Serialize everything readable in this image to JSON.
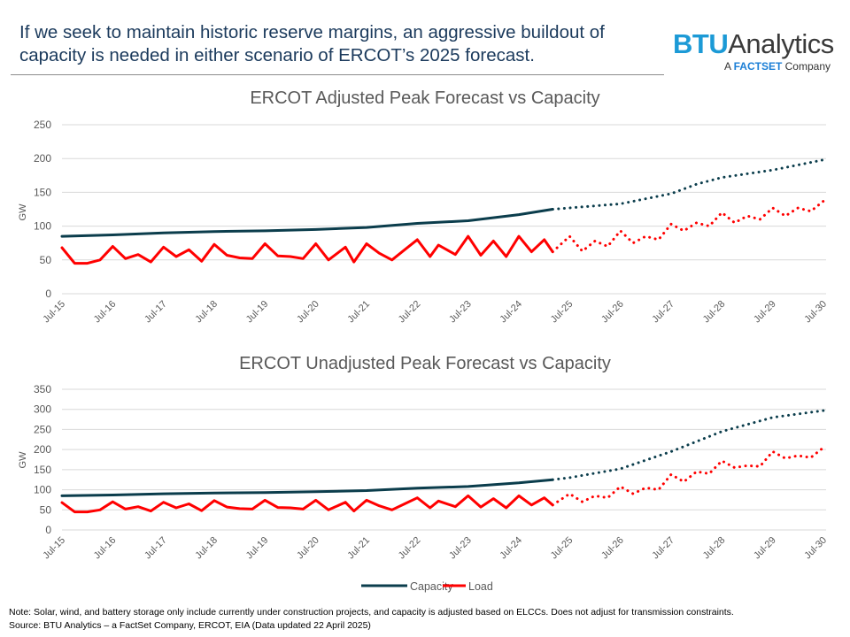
{
  "headline": "If we seek to maintain historic reserve margins, an aggressive buildout of capacity is needed in either scenario of ERCOT’s 2025 forecast.",
  "logo": {
    "brand": "BTU",
    "brand2": "Analytics",
    "tagline_pre": "A ",
    "tagline_brand": "FACTSET",
    "tagline_post": " Company"
  },
  "legend": {
    "capacity": "Capacity",
    "load": "Load"
  },
  "colors": {
    "capacity": "#0b3d4c",
    "load": "#ff0000",
    "grid": "#d9d9d9",
    "axis_text": "#595959"
  },
  "notes": {
    "note": "Note: Solar, wind, and battery storage only include currently under construction projects, and capacity is adjusted based on ELCCs. Does not adjust for transmission constraints.",
    "source": "Source: BTU Analytics – a FactSet Company, ERCOT, EIA (Data updated 22 April 2025)"
  },
  "chart_data": [
    {
      "type": "line",
      "title": "ERCOT Adjusted Peak Forecast vs Capacity",
      "ylabel": "GW",
      "ylim": [
        0,
        250
      ],
      "yticks": [
        0,
        50,
        100,
        150,
        200,
        250
      ],
      "xlim": [
        "2015-07",
        "2030-07"
      ],
      "xtick_labels": [
        "Jul-15",
        "Jul-16",
        "Jul-17",
        "Jul-18",
        "Jul-19",
        "Jul-20",
        "Jul-21",
        "Jul-22",
        "Jul-23",
        "Jul-24",
        "Jul-25",
        "Jul-26",
        "Jul-27",
        "Jul-28",
        "Jul-29",
        "Jul-30"
      ],
      "grid": true,
      "legend": "bottom",
      "series": [
        {
          "name": "Capacity",
          "actual": {
            "x": [
              "2015-07",
              "2016-07",
              "2017-07",
              "2018-07",
              "2019-07",
              "2020-07",
              "2021-07",
              "2022-07",
              "2023-07",
              "2024-07",
              "2025-03"
            ],
            "y": [
              85,
              87,
              90,
              92,
              93,
              95,
              98,
              104,
              108,
              117,
              125
            ]
          },
          "forecast": {
            "x": [
              "2025-03",
              "2025-07",
              "2026-07",
              "2027-07",
              "2028-01",
              "2028-07",
              "2029-07",
              "2030-07"
            ],
            "y": [
              125,
              127,
              133,
              148,
              162,
              172,
              183,
              198
            ]
          }
        },
        {
          "name": "Load",
          "actual": {
            "x": [
              "2015-07",
              "2015-10",
              "2016-01",
              "2016-04",
              "2016-07",
              "2016-10",
              "2017-01",
              "2017-04",
              "2017-07",
              "2017-10",
              "2018-01",
              "2018-04",
              "2018-07",
              "2018-10",
              "2019-01",
              "2019-04",
              "2019-07",
              "2019-10",
              "2020-01",
              "2020-04",
              "2020-07",
              "2020-10",
              "2021-02",
              "2021-04",
              "2021-07",
              "2021-10",
              "2022-01",
              "2022-04",
              "2022-07",
              "2022-10",
              "2022-12",
              "2023-04",
              "2023-07",
              "2023-10",
              "2024-01",
              "2024-04",
              "2024-07",
              "2024-10",
              "2025-01",
              "2025-03"
            ],
            "y": [
              68,
              45,
              45,
              50,
              70,
              52,
              58,
              47,
              69,
              55,
              65,
              48,
              73,
              57,
              53,
              52,
              74,
              56,
              55,
              52,
              74,
              50,
              69,
              47,
              74,
              60,
              50,
              65,
              80,
              55,
              72,
              58,
              85,
              57,
              78,
              55,
              85,
              62,
              80,
              62
            ]
          },
          "forecast": {
            "x": [
              "2025-03",
              "2025-07",
              "2025-10",
              "2026-01",
              "2026-04",
              "2026-07",
              "2026-10",
              "2027-01",
              "2027-04",
              "2027-07",
              "2027-10",
              "2028-01",
              "2028-04",
              "2028-07",
              "2028-10",
              "2029-01",
              "2029-04",
              "2029-07",
              "2029-10",
              "2030-01",
              "2030-04",
              "2030-07"
            ],
            "y": [
              62,
              85,
              63,
              78,
              70,
              93,
              75,
              85,
              80,
              103,
              93,
              105,
              100,
              120,
              105,
              115,
              110,
              127,
              115,
              127,
              122,
              137
            ]
          }
        }
      ]
    },
    {
      "type": "line",
      "title": "ERCOT Unadjusted Peak Forecast vs Capacity",
      "ylabel": "GW",
      "ylim": [
        0,
        350
      ],
      "yticks": [
        0,
        50,
        100,
        150,
        200,
        250,
        300,
        350
      ],
      "xlim": [
        "2015-07",
        "2030-07"
      ],
      "xtick_labels": [
        "Jul-15",
        "Jul-16",
        "Jul-17",
        "Jul-18",
        "Jul-19",
        "Jul-20",
        "Jul-21",
        "Jul-22",
        "Jul-23",
        "Jul-24",
        "Jul-25",
        "Jul-26",
        "Jul-27",
        "Jul-28",
        "Jul-29",
        "Jul-30"
      ],
      "grid": true,
      "legend": "bottom",
      "series": [
        {
          "name": "Capacity",
          "actual": {
            "x": [
              "2015-07",
              "2016-07",
              "2017-07",
              "2018-07",
              "2019-07",
              "2020-07",
              "2021-07",
              "2022-07",
              "2023-07",
              "2024-07",
              "2025-03"
            ],
            "y": [
              85,
              87,
              90,
              92,
              93,
              95,
              98,
              104,
              108,
              117,
              125
            ]
          },
          "forecast": {
            "x": [
              "2025-03",
              "2025-07",
              "2026-07",
              "2027-07",
              "2028-07",
              "2029-07",
              "2030-07"
            ],
            "y": [
              125,
              130,
              152,
              195,
              245,
              280,
              297
            ]
          }
        },
        {
          "name": "Load",
          "actual": {
            "x": [
              "2015-07",
              "2015-10",
              "2016-01",
              "2016-04",
              "2016-07",
              "2016-10",
              "2017-01",
              "2017-04",
              "2017-07",
              "2017-10",
              "2018-01",
              "2018-04",
              "2018-07",
              "2018-10",
              "2019-01",
              "2019-04",
              "2019-07",
              "2019-10",
              "2020-01",
              "2020-04",
              "2020-07",
              "2020-10",
              "2021-02",
              "2021-04",
              "2021-07",
              "2021-10",
              "2022-01",
              "2022-04",
              "2022-07",
              "2022-10",
              "2022-12",
              "2023-04",
              "2023-07",
              "2023-10",
              "2024-01",
              "2024-04",
              "2024-07",
              "2024-10",
              "2025-01",
              "2025-03"
            ],
            "y": [
              68,
              45,
              45,
              50,
              70,
              52,
              58,
              47,
              69,
              55,
              65,
              48,
              73,
              57,
              53,
              52,
              74,
              56,
              55,
              52,
              74,
              50,
              69,
              47,
              74,
              60,
              50,
              65,
              80,
              55,
              72,
              58,
              85,
              57,
              78,
              55,
              85,
              62,
              80,
              62
            ]
          },
          "forecast": {
            "x": [
              "2025-03",
              "2025-07",
              "2025-10",
              "2026-01",
              "2026-04",
              "2026-07",
              "2026-10",
              "2027-01",
              "2027-04",
              "2027-07",
              "2027-10",
              "2028-01",
              "2028-04",
              "2028-07",
              "2028-10",
              "2029-01",
              "2029-04",
              "2029-07",
              "2029-10",
              "2030-01",
              "2030-04",
              "2030-07"
            ],
            "y": [
              62,
              90,
              70,
              85,
              80,
              108,
              90,
              105,
              100,
              138,
              120,
              145,
              140,
              172,
              155,
              160,
              158,
              195,
              178,
              185,
              180,
              205
            ]
          }
        }
      ]
    }
  ]
}
